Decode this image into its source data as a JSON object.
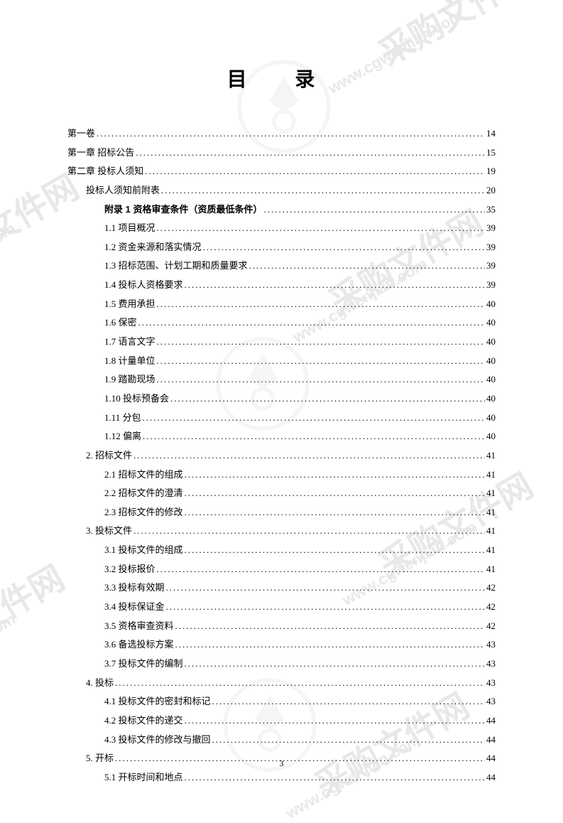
{
  "title": "目 录",
  "pageNumber": "3",
  "watermark": {
    "text_cn": "采购文件网",
    "text_url": "www.cgwenjian.com",
    "color": "#e8e8e8"
  },
  "toc": [
    {
      "label": "第一卷",
      "page": "14",
      "indent": 0,
      "bold": false
    },
    {
      "label": "第一章 招标公告",
      "page": "15",
      "indent": 0,
      "bold": false
    },
    {
      "label": "第二章 投标人须知",
      "page": "19",
      "indent": 0,
      "bold": false
    },
    {
      "label": "投标人须知前附表",
      "page": "20",
      "indent": 1,
      "bold": false
    },
    {
      "label": "附录 1 资格审查条件（资质最低条件）",
      "page": "35",
      "indent": 2,
      "bold": true
    },
    {
      "label": "1.1 项目概况",
      "page": "39",
      "indent": 2,
      "bold": false
    },
    {
      "label": "1.2 资金来源和落实情况",
      "page": "39",
      "indent": 2,
      "bold": false
    },
    {
      "label": "1.3 招标范围、计划工期和质量要求",
      "page": "39",
      "indent": 2,
      "bold": false
    },
    {
      "label": "1.4 投标人资格要求",
      "page": "39",
      "indent": 2,
      "bold": false
    },
    {
      "label": "1.5 费用承担",
      "page": "40",
      "indent": 2,
      "bold": false
    },
    {
      "label": "1.6 保密",
      "page": "40",
      "indent": 2,
      "bold": false
    },
    {
      "label": "1.7 语言文字",
      "page": "40",
      "indent": 2,
      "bold": false
    },
    {
      "label": "1.8 计量单位",
      "page": "40",
      "indent": 2,
      "bold": false
    },
    {
      "label": "1.9 踏勘现场",
      "page": "40",
      "indent": 2,
      "bold": false
    },
    {
      "label": "1.10  投标预备会",
      "page": "40",
      "indent": 2,
      "bold": false
    },
    {
      "label": "1.11  分包",
      "page": "40",
      "indent": 2,
      "bold": false
    },
    {
      "label": "1.12  偏离",
      "page": "40",
      "indent": 2,
      "bold": false
    },
    {
      "label": "2. 招标文件",
      "page": "41",
      "indent": 1,
      "bold": false
    },
    {
      "label": "2.1 招标文件的组成",
      "page": "41",
      "indent": 2,
      "bold": false
    },
    {
      "label": "2.2 招标文件的澄清",
      "page": "41",
      "indent": 2,
      "bold": false
    },
    {
      "label": "2.3 招标文件的修改",
      "page": "41",
      "indent": 2,
      "bold": false
    },
    {
      "label": "3. 投标文件",
      "page": "41",
      "indent": 1,
      "bold": false
    },
    {
      "label": "3.1 投标文件的组成",
      "page": "41",
      "indent": 2,
      "bold": false
    },
    {
      "label": "3.2 投标报价",
      "page": "41",
      "indent": 2,
      "bold": false
    },
    {
      "label": "3.3 投标有效期",
      "page": "42",
      "indent": 2,
      "bold": false
    },
    {
      "label": "3.4 投标保证金",
      "page": "42",
      "indent": 2,
      "bold": false
    },
    {
      "label": "3.5 资格审查资料",
      "page": "42",
      "indent": 2,
      "bold": false
    },
    {
      "label": "3.6 备选投标方案",
      "page": "43",
      "indent": 2,
      "bold": false
    },
    {
      "label": "3.7 投标文件的编制",
      "page": "43",
      "indent": 2,
      "bold": false
    },
    {
      "label": "4. 投标",
      "page": "43",
      "indent": 1,
      "bold": false
    },
    {
      "label": "4.1 投标文件的密封和标记",
      "page": "43",
      "indent": 2,
      "bold": false
    },
    {
      "label": "4.2 投标文件的递交",
      "page": "44",
      "indent": 2,
      "bold": false
    },
    {
      "label": "4.3 投标文件的修改与撤回",
      "page": "44",
      "indent": 2,
      "bold": false
    },
    {
      "label": "5. 开标",
      "page": "44",
      "indent": 1,
      "bold": false
    },
    {
      "label": "5.1 开标时间和地点",
      "page": "44",
      "indent": 2,
      "bold": false
    }
  ]
}
